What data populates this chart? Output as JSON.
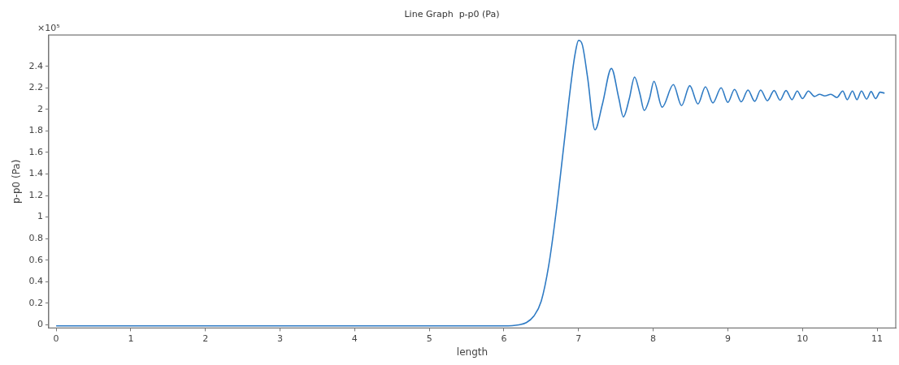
{
  "chart_data": {
    "type": "line",
    "title": "Line Graph  p-p0 (Pa)",
    "xlabel": "length",
    "ylabel": "p-p0 (Pa)",
    "annotations": [
      "×10⁵"
    ],
    "xlim": [
      -0.1,
      11.25
    ],
    "xticks": [
      0,
      1,
      2,
      3,
      4,
      5,
      6,
      7,
      8,
      9,
      10,
      11
    ],
    "ylim": [
      -0.03,
      2.69
    ],
    "yticks": [
      0,
      0.2,
      0.4,
      0.6,
      0.8,
      1,
      1.2,
      1.4,
      1.6,
      1.8,
      2,
      2.2,
      2.4
    ],
    "grid": false,
    "legend": false,
    "marker": "none",
    "line_style": "solid",
    "series": [
      {
        "color": "#2f7bc4",
        "x": [
          0,
          1,
          2,
          3,
          4,
          5,
          6,
          6.2,
          6.3,
          6.4,
          6.5,
          6.6,
          6.7,
          6.8,
          6.9,
          6.95,
          7.0,
          7.05,
          7.12,
          7.22,
          7.32,
          7.44,
          7.54,
          7.6,
          7.68,
          7.75,
          7.82,
          7.88,
          7.95,
          8.01,
          8.12,
          8.27,
          8.38,
          8.49,
          8.6,
          8.7,
          8.8,
          8.91,
          9.0,
          9.09,
          9.18,
          9.27,
          9.36,
          9.44,
          9.53,
          9.62,
          9.7,
          9.78,
          9.86,
          9.93,
          10.0,
          10.08,
          10.16,
          10.23,
          10.3,
          10.38,
          10.46,
          10.54,
          10.6,
          10.67,
          10.73,
          10.79,
          10.86,
          10.92,
          10.98,
          11.04,
          11.1
        ],
        "values": [
          -0.01,
          -0.01,
          -0.01,
          -0.01,
          -0.01,
          -0.01,
          -0.01,
          0.0,
          0.02,
          0.08,
          0.22,
          0.55,
          1.05,
          1.65,
          2.25,
          2.5,
          2.64,
          2.6,
          2.3,
          1.81,
          2.05,
          2.38,
          2.1,
          1.93,
          2.1,
          2.3,
          2.15,
          1.99,
          2.1,
          2.26,
          2.02,
          2.23,
          2.035,
          2.22,
          2.05,
          2.21,
          2.06,
          2.2,
          2.065,
          2.185,
          2.07,
          2.18,
          2.075,
          2.18,
          2.08,
          2.175,
          2.085,
          2.175,
          2.09,
          2.17,
          2.1,
          2.17,
          2.12,
          2.14,
          2.125,
          2.14,
          2.11,
          2.17,
          2.09,
          2.17,
          2.09,
          2.17,
          2.095,
          2.165,
          2.1,
          2.16,
          2.15
        ]
      }
    ]
  }
}
